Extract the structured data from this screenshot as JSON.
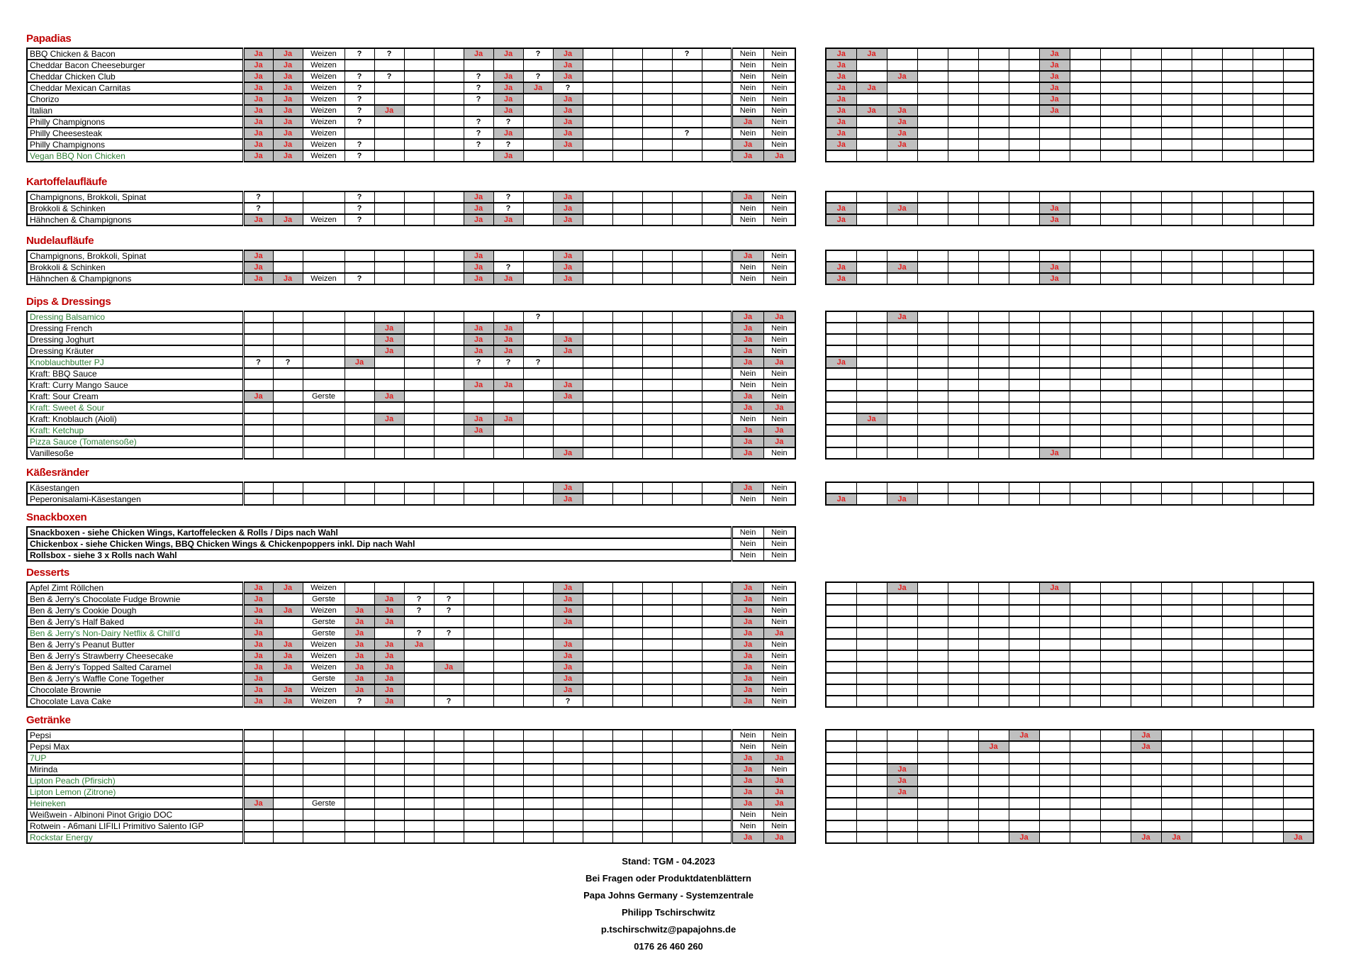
{
  "colors": {
    "heading_red": "#C00000",
    "ja_red": "#E02020",
    "ja_bg_gray": "#BFBFBF",
    "green_item": "#2E7D36",
    "border": "#000000"
  },
  "table_spec": {
    "left_col_count": 18,
    "right_col_count": 16,
    "double_border_after_left_col": 16
  },
  "sections": [
    {
      "title": "Papadias",
      "has_right_table": true,
      "rows": [
        {
          "name": "BBQ Chicken & Bacon",
          "green": false,
          "left": {
            "1": "Ja",
            "2": "Ja",
            "3": "Weizen",
            "4": "?",
            "5": "?",
            "8": "Ja",
            "9": "Ja",
            "10": "?",
            "11": "Ja",
            "15": "?",
            "17": "Nein",
            "18": "Nein"
          },
          "right": {
            "1": "Ja",
            "2": "Ja",
            "8": "Ja"
          }
        },
        {
          "name": "Cheddar Bacon Cheeseburger",
          "green": false,
          "left": {
            "1": "Ja",
            "2": "Ja",
            "3": "Weizen",
            "11": "Ja",
            "17": "Nein",
            "18": "Nein"
          },
          "right": {
            "1": "Ja",
            "8": "Ja"
          }
        },
        {
          "name": "Cheddar Chicken Club",
          "green": false,
          "left": {
            "1": "Ja",
            "2": "Ja",
            "3": "Weizen",
            "4": "?",
            "5": "?",
            "8": "?",
            "9": "Ja",
            "10": "?",
            "11": "Ja",
            "17": "Nein",
            "18": "Nein"
          },
          "right": {
            "1": "Ja",
            "3": "Ja",
            "8": "Ja"
          }
        },
        {
          "name": "Cheddar Mexican Carnitas",
          "green": false,
          "left": {
            "1": "Ja",
            "2": "Ja",
            "3": "Weizen",
            "4": "?",
            "8": "?",
            "9": "Ja",
            "10": "Ja",
            "11": "?",
            "17": "Nein",
            "18": "Nein"
          },
          "right": {
            "1": "Ja",
            "2": "Ja",
            "8": "Ja"
          }
        },
        {
          "name": "Chorizo",
          "green": false,
          "left": {
            "1": "Ja",
            "2": "Ja",
            "3": "Weizen",
            "4": "?",
            "8": "?",
            "9": "Ja",
            "11": "Ja",
            "17": "Nein",
            "18": "Nein"
          },
          "right": {
            "1": "Ja",
            "8": "Ja"
          }
        },
        {
          "name": "Italian",
          "green": false,
          "left": {
            "1": "Ja",
            "2": "Ja",
            "3": "Weizen",
            "4": "?",
            "5": "Ja",
            "9": "Ja",
            "11": "Ja",
            "17": "Nein",
            "18": "Nein"
          },
          "right": {
            "1": "Ja",
            "2": "Ja",
            "3": "Ja",
            "8": "Ja"
          }
        },
        {
          "name": "Philly Champignons",
          "green": false,
          "left": {
            "1": "Ja",
            "2": "Ja",
            "3": "Weizen",
            "4": "?",
            "8": "?",
            "9": "?",
            "11": "Ja",
            "17": "Ja",
            "18": "Nein"
          },
          "right": {
            "1": "Ja",
            "3": "Ja"
          }
        },
        {
          "name": "Philly Cheesesteak",
          "green": false,
          "left": {
            "1": "Ja",
            "2": "Ja",
            "3": "Weizen",
            "8": "?",
            "9": "Ja",
            "11": "Ja",
            "15": "?",
            "17": "Nein",
            "18": "Nein"
          },
          "right": {
            "1": "Ja",
            "3": "Ja"
          }
        },
        {
          "name": "Philly Champignons",
          "green": false,
          "left": {
            "1": "Ja",
            "2": "Ja",
            "3": "Weizen",
            "4": "?",
            "8": "?",
            "9": "?",
            "11": "Ja",
            "17": "Ja",
            "18": "Nein"
          },
          "right": {
            "1": "Ja",
            "3": "Ja"
          }
        },
        {
          "name": "Vegan BBQ Non Chicken",
          "green": true,
          "left": {
            "1": "Ja",
            "2": "Ja",
            "3": "Weizen",
            "4": "?",
            "9": "Ja",
            "17": "Ja",
            "18": "Ja"
          },
          "right": {}
        }
      ]
    },
    {
      "title": "Kartoffelaufläufe",
      "has_right_table": true,
      "rows": [
        {
          "name": "Champignons, Brokkoli, Spinat",
          "green": false,
          "left": {
            "1": "?",
            "4": "?",
            "8": "Ja",
            "9": "?",
            "11": "Ja",
            "17": "Ja",
            "18": "Nein"
          },
          "right": {}
        },
        {
          "name": "Brokkoli & Schinken",
          "green": false,
          "left": {
            "1": "?",
            "4": "?",
            "8": "Ja",
            "9": "?",
            "11": "Ja",
            "17": "Nein",
            "18": "Nein"
          },
          "right": {
            "1": "Ja",
            "3": "Ja",
            "8": "Ja"
          }
        },
        {
          "name": "Hähnchen & Champignons",
          "green": false,
          "left": {
            "1": "Ja",
            "2": "Ja",
            "3": "Weizen",
            "4": "?",
            "8": "Ja",
            "9": "Ja",
            "11": "Ja",
            "17": "Nein",
            "18": "Nein"
          },
          "right": {
            "1": "Ja",
            "8": "Ja"
          }
        }
      ]
    },
    {
      "title": "Nudelaufläufe",
      "has_right_table": true,
      "rows": [
        {
          "name": "Champignons, Brokkoli, Spinat",
          "green": false,
          "left": {
            "1": "Ja",
            "8": "Ja",
            "11": "Ja",
            "17": "Ja",
            "18": "Nein"
          },
          "right": {}
        },
        {
          "name": "Brokkoli & Schinken",
          "green": false,
          "left": {
            "1": "Ja",
            "8": "Ja",
            "9": "?",
            "11": "Ja",
            "17": "Nein",
            "18": "Nein"
          },
          "right": {
            "1": "Ja",
            "3": "Ja",
            "8": "Ja"
          }
        },
        {
          "name": "Hähnchen & Champignons",
          "green": false,
          "left": {
            "1": "Ja",
            "2": "Ja",
            "3": "Weizen",
            "4": "?",
            "8": "Ja",
            "9": "Ja",
            "11": "Ja",
            "17": "Nein",
            "18": "Nein"
          },
          "right": {
            "1": "Ja",
            "8": "Ja"
          }
        }
      ]
    },
    {
      "title": "Dips & Dressings",
      "has_right_table": true,
      "rows": [
        {
          "name": "Dressing Balsamico",
          "green": true,
          "left": {
            "10": "?",
            "17": "Ja",
            "18": "Ja"
          },
          "right": {
            "3": "Ja"
          }
        },
        {
          "name": "Dressing French",
          "green": false,
          "left": {
            "5": "Ja",
            "8": "Ja",
            "9": "Ja",
            "17": "Ja",
            "18": "Nein"
          },
          "right": {}
        },
        {
          "name": "Dressing Joghurt",
          "green": false,
          "left": {
            "5": "Ja",
            "8": "Ja",
            "9": "Ja",
            "11": "Ja",
            "17": "Ja",
            "18": "Nein"
          },
          "right": {}
        },
        {
          "name": "Dressing Kräuter",
          "green": false,
          "left": {
            "5": "Ja",
            "8": "Ja",
            "9": "Ja",
            "11": "Ja",
            "17": "Ja",
            "18": "Nein"
          },
          "right": {}
        },
        {
          "name": "Knoblauchbutter PJ",
          "green": true,
          "left": {
            "1": "?",
            "2": "?",
            "4": "Ja",
            "8": "?",
            "9": "?",
            "10": "?",
            "17": "Ja",
            "18": "Ja"
          },
          "right": {
            "1": "Ja"
          }
        },
        {
          "name": "Kraft: BBQ Sauce",
          "green": false,
          "left": {
            "17": "Nein",
            "18": "Nein"
          },
          "right": {}
        },
        {
          "name": "Kraft: Curry Mango Sauce",
          "green": false,
          "left": {
            "8": "Ja",
            "9": "Ja",
            "11": "Ja",
            "17": "Nein",
            "18": "Nein"
          },
          "right": {}
        },
        {
          "name": "Kraft: Sour Cream",
          "green": false,
          "left": {
            "1": "Ja",
            "3": "Gerste",
            "5": "Ja",
            "11": "Ja",
            "17": "Ja",
            "18": "Nein"
          },
          "right": {}
        },
        {
          "name": "Kraft: Sweet & Sour",
          "green": true,
          "left": {
            "17": "Ja",
            "18": "Ja"
          },
          "right": {}
        },
        {
          "name": "Kraft: Knoblauch (Aioli)",
          "green": false,
          "left": {
            "5": "Ja",
            "8": "Ja",
            "9": "Ja",
            "17": "Nein",
            "18": "Nein"
          },
          "right": {
            "2": "Ja"
          }
        },
        {
          "name": "Kraft: Ketchup",
          "green": true,
          "left": {
            "8": "Ja",
            "17": "Ja",
            "18": "Ja"
          },
          "right": {}
        },
        {
          "name": "Pizza Sauce (Tomatensoße)",
          "green": true,
          "left": {
            "17": "Ja",
            "18": "Ja"
          },
          "right": {}
        },
        {
          "name": "Vanillesoße",
          "green": false,
          "left": {
            "11": "Ja",
            "17": "Ja",
            "18": "Nein"
          },
          "right": {
            "8": "Ja"
          }
        }
      ]
    },
    {
      "title": "Käßesränder",
      "has_right_table": true,
      "rows": [
        {
          "name": "Käsestangen",
          "green": false,
          "left": {
            "11": "Ja",
            "17": "Ja",
            "18": "Nein"
          },
          "right": {}
        },
        {
          "name": "Peperonisalami-Käsestangen",
          "green": false,
          "left": {
            "11": "Ja",
            "17": "Nein",
            "18": "Nein"
          },
          "right": {
            "1": "Ja",
            "3": "Ja"
          }
        }
      ]
    },
    {
      "title": "Snackboxen",
      "has_right_table": false,
      "rows": [
        {
          "name": "Snackboxen - siehe Chicken Wings, Kartoffelecken & Rolls / Dips nach Wahl",
          "green": false,
          "merged": true,
          "left": {
            "17": "Nein",
            "18": "Nein"
          },
          "right": {}
        },
        {
          "name": "Chickenbox - siehe Chicken Wings, BBQ Chicken Wings & Chickenpoppers inkl. Dip nach Wahl",
          "green": false,
          "merged": true,
          "left": {
            "17": "Nein",
            "18": "Nein"
          },
          "right": {}
        },
        {
          "name": "Rollsbox - siehe 3 x Rolls nach Wahl",
          "green": false,
          "merged": true,
          "left": {
            "17": "Nein",
            "18": "Nein"
          },
          "right": {}
        }
      ]
    },
    {
      "title": "Desserts",
      "has_right_table": true,
      "rows": [
        {
          "name": "Apfel Zimt Röllchen",
          "green": false,
          "left": {
            "1": "Ja",
            "2": "Ja",
            "3": "Weizen",
            "11": "Ja",
            "17": "Ja",
            "18": "Nein"
          },
          "right": {
            "3": "Ja",
            "8": "Ja"
          }
        },
        {
          "name": "Ben & Jerry's Chocolate Fudge Brownie",
          "green": false,
          "left": {
            "1": "Ja",
            "3": "Gerste",
            "5": "Ja",
            "6": "?",
            "7": "?",
            "11": "Ja",
            "17": "Ja",
            "18": "Nein"
          },
          "right": {}
        },
        {
          "name": "Ben & Jerry's Cookie Dough",
          "green": false,
          "left": {
            "1": "Ja",
            "2": "Ja",
            "3": "Weizen",
            "4": "Ja",
            "5": "Ja",
            "6": "?",
            "7": "?",
            "11": "Ja",
            "17": "Ja",
            "18": "Nein"
          },
          "right": {}
        },
        {
          "name": "Ben & Jerry's Half Baked",
          "green": false,
          "left": {
            "1": "Ja",
            "3": "Gerste",
            "4": "Ja",
            "5": "Ja",
            "11": "Ja",
            "17": "Ja",
            "18": "Nein"
          },
          "right": {}
        },
        {
          "name": "Ben & Jerry's Non-Dairy Netflix & Chill'd",
          "green": true,
          "left": {
            "1": "Ja",
            "3": "Gerste",
            "4": "Ja",
            "6": "?",
            "7": "?",
            "17": "Ja",
            "18": "Ja"
          },
          "right": {}
        },
        {
          "name": "Ben & Jerry's Peanut Butter",
          "green": false,
          "left": {
            "1": "Ja",
            "2": "Ja",
            "3": "Weizen",
            "4": "Ja",
            "5": "Ja",
            "6": "Ja",
            "11": "Ja",
            "17": "Ja",
            "18": "Nein"
          },
          "right": {}
        },
        {
          "name": "Ben & Jerry's Strawberry Cheesecake",
          "green": false,
          "left": {
            "1": "Ja",
            "2": "Ja",
            "3": "Weizen",
            "4": "Ja",
            "5": "Ja",
            "11": "Ja",
            "17": "Ja",
            "18": "Nein"
          },
          "right": {}
        },
        {
          "name": "Ben & Jerry's Topped Salted Caramel",
          "green": false,
          "left": {
            "1": "Ja",
            "2": "Ja",
            "3": "Weizen",
            "4": "Ja",
            "5": "Ja",
            "7": "Ja",
            "11": "Ja",
            "17": "Ja",
            "18": "Nein"
          },
          "right": {}
        },
        {
          "name": "Ben & Jerry's Waffle Cone Together",
          "green": false,
          "left": {
            "1": "Ja",
            "3": "Gerste",
            "4": "Ja",
            "5": "Ja",
            "11": "Ja",
            "17": "Ja",
            "18": "Nein"
          },
          "right": {}
        },
        {
          "name": "Chocolate Brownie",
          "green": false,
          "left": {
            "1": "Ja",
            "2": "Ja",
            "3": "Weizen",
            "4": "Ja",
            "5": "Ja",
            "11": "Ja",
            "17": "Ja",
            "18": "Nein"
          },
          "right": {}
        },
        {
          "name": "Chocolate Lava Cake",
          "green": false,
          "left": {
            "1": "Ja",
            "2": "Ja",
            "3": "Weizen",
            "4": "?",
            "5": "Ja",
            "7": "?",
            "11": "?",
            "17": "Ja",
            "18": "Nein"
          },
          "right": {}
        }
      ]
    },
    {
      "title": "Getränke",
      "has_right_table": true,
      "rows": [
        {
          "name": "Pepsi",
          "green": false,
          "left": {
            "17": "Nein",
            "18": "Nein"
          },
          "right": {
            "7": "Ja",
            "11": "Ja"
          }
        },
        {
          "name": "Pepsi Max",
          "green": false,
          "left": {
            "17": "Nein",
            "18": "Nein"
          },
          "right": {
            "6": "Ja",
            "11": "Ja"
          }
        },
        {
          "name": "7UP",
          "green": true,
          "left": {
            "17": "Ja",
            "18": "Ja"
          },
          "right": {}
        },
        {
          "name": "Mirinda",
          "green": false,
          "left": {
            "17": "Ja",
            "18": "Nein"
          },
          "right": {
            "3": "Ja"
          }
        },
        {
          "name": "Lipton Peach (Pfirsich)",
          "green": true,
          "left": {
            "17": "Ja",
            "18": "Ja"
          },
          "right": {
            "3": "Ja"
          }
        },
        {
          "name": "Lipton Lemon (Zitrone)",
          "green": true,
          "left": {
            "17": "Ja",
            "18": "Ja"
          },
          "right": {
            "3": "Ja"
          }
        },
        {
          "name": "Heineken",
          "green": true,
          "left": {
            "1": "Ja",
            "3": "Gerste",
            "17": "Ja",
            "18": "Ja"
          },
          "right": {}
        },
        {
          "name": "Weißwein - Albinoni Pinot Grigio DOC",
          "green": false,
          "left": {
            "17": "Nein",
            "18": "Nein"
          },
          "right": {}
        },
        {
          "name": "Rotwein - A6mani LIFILI Primitivo Salento IGP",
          "green": false,
          "left": {
            "17": "Nein",
            "18": "Nein"
          },
          "right": {}
        },
        {
          "name": "Rockstar Energy",
          "green": true,
          "left": {
            "17": "Ja",
            "18": "Ja"
          },
          "right": {
            "7": "Ja",
            "11": "Ja",
            "12": "Ja",
            "16": "Ja"
          }
        }
      ]
    }
  ],
  "footer": {
    "lines": [
      "Stand: TGM - 04.2023",
      "Bei Fragen oder Produktdatenblättern",
      "Papa Johns Germany - Systemzentrale",
      "Philipp Tschirschwitz",
      "p.tschirschwitz@papajohns.de",
      "0176 26 460 260"
    ]
  }
}
